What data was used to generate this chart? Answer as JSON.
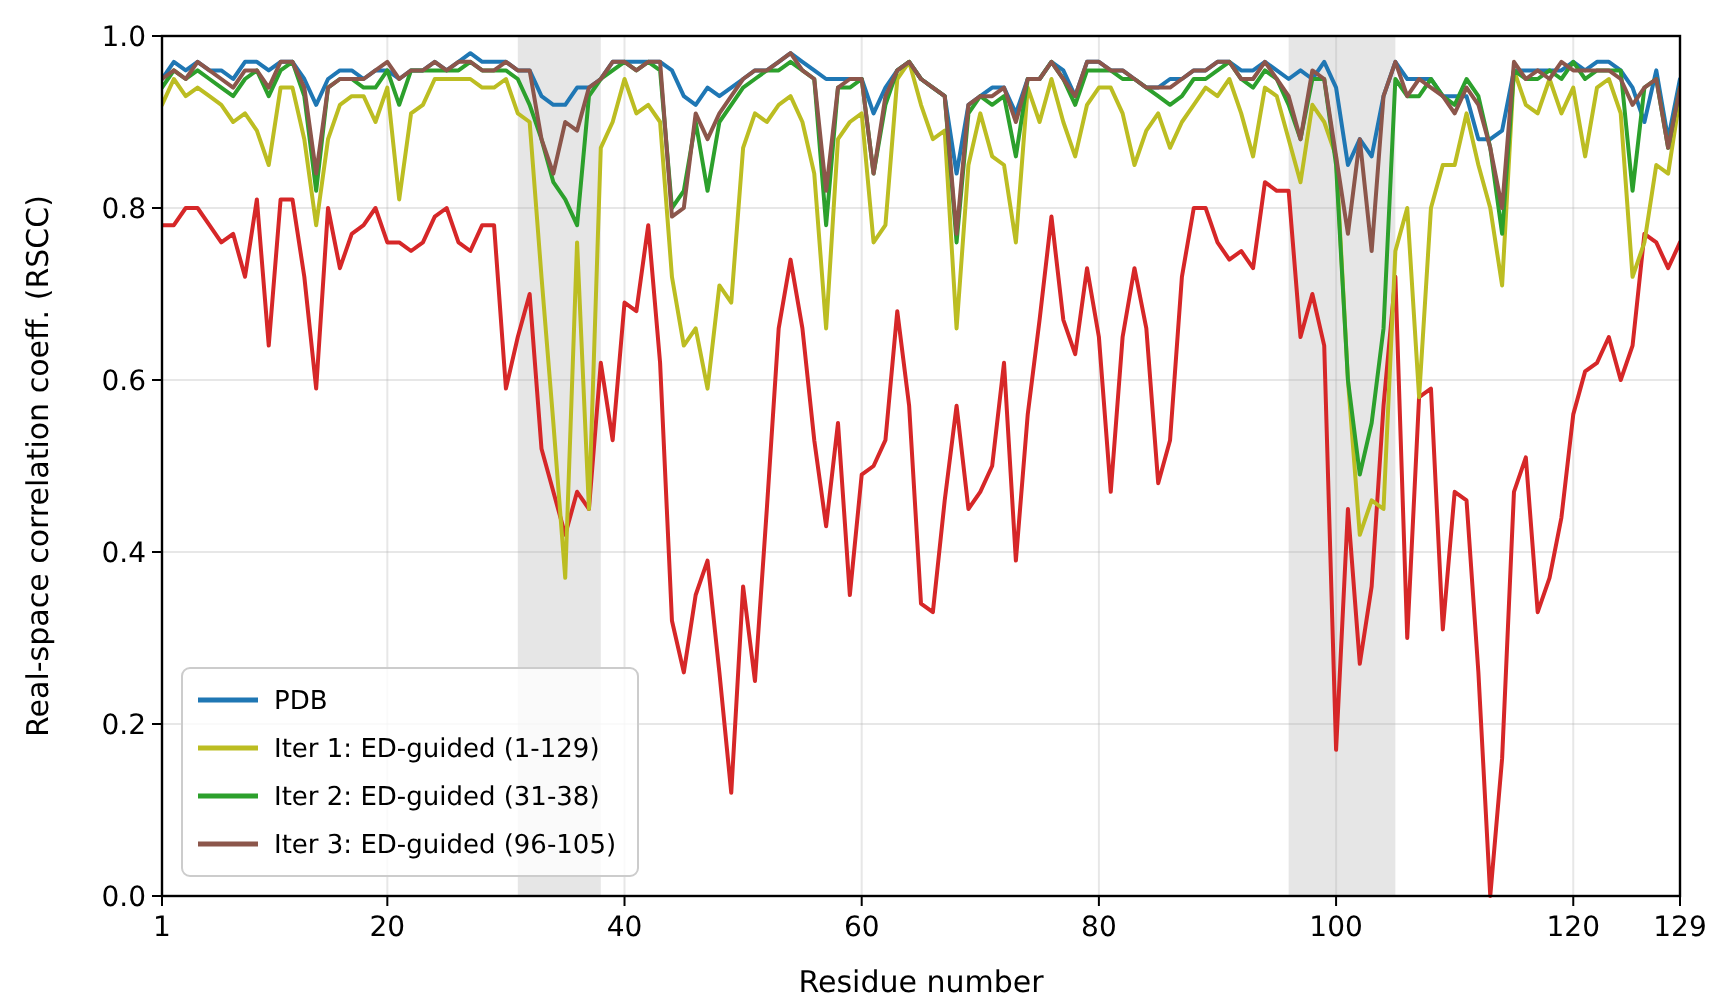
{
  "chart_data": {
    "type": "line",
    "xlabel": "Residue number",
    "ylabel": "Real-space correlation coeff. (RSCC)",
    "x": [
      1,
      2,
      3,
      4,
      5,
      6,
      7,
      8,
      9,
      10,
      11,
      12,
      13,
      14,
      15,
      16,
      17,
      18,
      19,
      20,
      21,
      22,
      23,
      24,
      25,
      26,
      27,
      28,
      29,
      30,
      31,
      32,
      33,
      34,
      35,
      36,
      37,
      38,
      39,
      40,
      41,
      42,
      43,
      44,
      45,
      46,
      47,
      48,
      49,
      50,
      51,
      52,
      53,
      54,
      55,
      56,
      57,
      58,
      59,
      60,
      61,
      62,
      63,
      64,
      65,
      66,
      67,
      68,
      69,
      70,
      71,
      72,
      73,
      74,
      75,
      76,
      77,
      78,
      79,
      80,
      81,
      82,
      83,
      84,
      85,
      86,
      87,
      88,
      89,
      90,
      91,
      92,
      93,
      94,
      95,
      96,
      97,
      98,
      99,
      100,
      101,
      102,
      103,
      104,
      105,
      106,
      107,
      108,
      109,
      110,
      111,
      112,
      113,
      114,
      115,
      116,
      117,
      118,
      119,
      120,
      121,
      122,
      123,
      124,
      125,
      126,
      127,
      128,
      129
    ],
    "xlim": [
      1,
      129
    ],
    "xticks": [
      1,
      20,
      40,
      60,
      80,
      100,
      120,
      129
    ],
    "ylim": [
      0,
      1
    ],
    "yticks": [
      {
        "value": 0,
        "label": "0.0"
      },
      {
        "value": 0.2,
        "label": "0.2"
      },
      {
        "value": 0.4,
        "label": "0.4"
      },
      {
        "value": 0.6,
        "label": "0.6"
      },
      {
        "value": 0.8,
        "label": "0.8"
      },
      {
        "value": 1,
        "label": "1.0"
      }
    ],
    "grid": true,
    "legend": "bottom left",
    "line_style": "solid",
    "bands": [
      {
        "axis": "x",
        "from": 31,
        "to": 38,
        "color": "#e6e6e6"
      },
      {
        "axis": "x",
        "from": 96,
        "to": 105,
        "color": "#e6e6e6"
      }
    ],
    "series": [
      {
        "name": "PDB",
        "color": "#1f77b4",
        "values": [
          0.95,
          0.97,
          0.96,
          0.97,
          0.96,
          0.96,
          0.95,
          0.97,
          0.97,
          0.96,
          0.97,
          0.97,
          0.95,
          0.92,
          0.95,
          0.96,
          0.96,
          0.95,
          0.96,
          0.96,
          0.95,
          0.96,
          0.96,
          0.97,
          0.96,
          0.97,
          0.98,
          0.97,
          0.97,
          0.97,
          0.96,
          0.96,
          0.93,
          0.92,
          0.92,
          0.94,
          0.94,
          0.95,
          0.97,
          0.97,
          0.97,
          0.97,
          0.97,
          0.96,
          0.93,
          0.92,
          0.94,
          0.93,
          0.94,
          0.95,
          0.96,
          0.96,
          0.97,
          0.98,
          0.97,
          0.96,
          0.95,
          0.95,
          0.95,
          0.95,
          0.91,
          0.94,
          0.96,
          0.97,
          0.95,
          0.94,
          0.93,
          0.84,
          0.92,
          0.93,
          0.94,
          0.94,
          0.91,
          0.95,
          0.95,
          0.97,
          0.96,
          0.93,
          0.97,
          0.97,
          0.96,
          0.96,
          0.95,
          0.94,
          0.94,
          0.95,
          0.95,
          0.96,
          0.96,
          0.97,
          0.97,
          0.96,
          0.96,
          0.97,
          0.96,
          0.95,
          0.96,
          0.95,
          0.97,
          0.94,
          0.85,
          0.88,
          0.86,
          0.93,
          0.97,
          0.95,
          0.95,
          0.95,
          0.93,
          0.93,
          0.93,
          0.88,
          0.88,
          0.89,
          0.96,
          0.96,
          0.96,
          0.96,
          0.96,
          0.97,
          0.96,
          0.97,
          0.97,
          0.96,
          0.94,
          0.9,
          0.96,
          0.88,
          0.95
        ]
      },
      {
        "color": "#d62728",
        "values": [
          0.78,
          0.78,
          0.8,
          0.8,
          0.78,
          0.76,
          0.77,
          0.72,
          0.81,
          0.64,
          0.81,
          0.81,
          0.72,
          0.59,
          0.8,
          0.73,
          0.77,
          0.78,
          0.8,
          0.76,
          0.76,
          0.75,
          0.76,
          0.79,
          0.8,
          0.76,
          0.75,
          0.78,
          0.78,
          0.59,
          0.65,
          0.7,
          0.52,
          0.47,
          0.42,
          0.47,
          0.45,
          0.62,
          0.53,
          0.69,
          0.68,
          0.78,
          0.62,
          0.32,
          0.26,
          0.35,
          0.39,
          0.26,
          0.12,
          0.36,
          0.25,
          0.45,
          0.66,
          0.74,
          0.66,
          0.53,
          0.43,
          0.55,
          0.35,
          0.49,
          0.5,
          0.53,
          0.68,
          0.57,
          0.34,
          0.33,
          0.46,
          0.57,
          0.45,
          0.47,
          0.5,
          0.62,
          0.39,
          0.56,
          0.67,
          0.79,
          0.67,
          0.63,
          0.73,
          0.65,
          0.47,
          0.65,
          0.73,
          0.66,
          0.48,
          0.53,
          0.72,
          0.8,
          0.8,
          0.76,
          0.74,
          0.75,
          0.73,
          0.83,
          0.82,
          0.82,
          0.65,
          0.7,
          0.64,
          0.17,
          0.45,
          0.27,
          0.36,
          0.57,
          0.72,
          0.3,
          0.58,
          0.59,
          0.31,
          0.47,
          0.46,
          0.26,
          0.0,
          0.16,
          0.47,
          0.51,
          0.33,
          0.37,
          0.44,
          0.56,
          0.61,
          0.62,
          0.65,
          0.6,
          0.64,
          0.77,
          0.76,
          0.73,
          0.76
        ]
      },
      {
        "name": "Iter 1: ED-guided (1-129)",
        "color": "#bcbd22",
        "values": [
          0.92,
          0.95,
          0.93,
          0.94,
          0.93,
          0.92,
          0.9,
          0.91,
          0.89,
          0.85,
          0.94,
          0.94,
          0.88,
          0.78,
          0.88,
          0.92,
          0.93,
          0.93,
          0.9,
          0.94,
          0.81,
          0.91,
          0.92,
          0.95,
          0.95,
          0.95,
          0.95,
          0.94,
          0.94,
          0.95,
          0.91,
          0.9,
          0.72,
          0.55,
          0.37,
          0.76,
          0.45,
          0.87,
          0.9,
          0.95,
          0.91,
          0.92,
          0.9,
          0.72,
          0.64,
          0.66,
          0.59,
          0.71,
          0.69,
          0.87,
          0.91,
          0.9,
          0.92,
          0.93,
          0.9,
          0.84,
          0.66,
          0.88,
          0.9,
          0.91,
          0.76,
          0.78,
          0.95,
          0.97,
          0.92,
          0.88,
          0.89,
          0.66,
          0.85,
          0.91,
          0.86,
          0.85,
          0.76,
          0.94,
          0.9,
          0.95,
          0.9,
          0.86,
          0.92,
          0.94,
          0.94,
          0.91,
          0.85,
          0.89,
          0.91,
          0.87,
          0.9,
          0.92,
          0.94,
          0.93,
          0.95,
          0.91,
          0.86,
          0.94,
          0.93,
          0.88,
          0.83,
          0.92,
          0.9,
          0.86,
          0.6,
          0.42,
          0.46,
          0.45,
          0.75,
          0.8,
          0.58,
          0.8,
          0.85,
          0.85,
          0.91,
          0.85,
          0.8,
          0.71,
          0.96,
          0.92,
          0.91,
          0.95,
          0.91,
          0.94,
          0.86,
          0.94,
          0.95,
          0.91,
          0.72,
          0.76,
          0.85,
          0.84,
          0.93
        ]
      },
      {
        "name": "Iter 2: ED-guided (31-38)",
        "color": "#2ca02c",
        "values": [
          0.94,
          0.96,
          0.95,
          0.96,
          0.95,
          0.94,
          0.93,
          0.95,
          0.96,
          0.93,
          0.96,
          0.97,
          0.93,
          0.82,
          0.94,
          0.95,
          0.95,
          0.94,
          0.94,
          0.96,
          0.92,
          0.96,
          0.96,
          0.96,
          0.96,
          0.96,
          0.97,
          0.96,
          0.96,
          0.96,
          0.95,
          0.92,
          0.88,
          0.83,
          0.81,
          0.78,
          0.93,
          0.95,
          0.96,
          0.97,
          0.96,
          0.97,
          0.96,
          0.8,
          0.82,
          0.9,
          0.82,
          0.9,
          0.92,
          0.94,
          0.95,
          0.96,
          0.96,
          0.97,
          0.96,
          0.95,
          0.78,
          0.94,
          0.94,
          0.95,
          0.84,
          0.92,
          0.96,
          0.97,
          0.95,
          0.94,
          0.93,
          0.76,
          0.91,
          0.93,
          0.92,
          0.93,
          0.86,
          0.95,
          0.95,
          0.97,
          0.95,
          0.92,
          0.96,
          0.96,
          0.96,
          0.95,
          0.95,
          0.94,
          0.93,
          0.92,
          0.93,
          0.95,
          0.95,
          0.96,
          0.97,
          0.95,
          0.94,
          0.96,
          0.95,
          0.92,
          0.88,
          0.95,
          0.95,
          0.85,
          0.6,
          0.49,
          0.55,
          0.66,
          0.95,
          0.93,
          0.93,
          0.95,
          0.93,
          0.92,
          0.95,
          0.93,
          0.87,
          0.77,
          0.96,
          0.95,
          0.95,
          0.96,
          0.95,
          0.97,
          0.95,
          0.96,
          0.96,
          0.96,
          0.82,
          0.94,
          0.95,
          0.87,
          0.94
        ]
      },
      {
        "name": "Iter 3: ED-guided (96-105)",
        "color": "#8c564b",
        "values": [
          0.95,
          0.96,
          0.95,
          0.97,
          0.96,
          0.95,
          0.94,
          0.96,
          0.96,
          0.94,
          0.97,
          0.97,
          0.94,
          0.84,
          0.94,
          0.95,
          0.95,
          0.95,
          0.96,
          0.97,
          0.95,
          0.96,
          0.96,
          0.97,
          0.96,
          0.97,
          0.97,
          0.96,
          0.96,
          0.97,
          0.96,
          0.96,
          0.88,
          0.84,
          0.9,
          0.89,
          0.94,
          0.95,
          0.97,
          0.97,
          0.96,
          0.97,
          0.97,
          0.79,
          0.8,
          0.91,
          0.88,
          0.91,
          0.93,
          0.95,
          0.96,
          0.96,
          0.97,
          0.98,
          0.96,
          0.95,
          0.82,
          0.94,
          0.95,
          0.95,
          0.84,
          0.93,
          0.96,
          0.97,
          0.95,
          0.94,
          0.93,
          0.77,
          0.92,
          0.93,
          0.93,
          0.94,
          0.9,
          0.95,
          0.95,
          0.97,
          0.95,
          0.93,
          0.97,
          0.97,
          0.96,
          0.96,
          0.95,
          0.94,
          0.94,
          0.94,
          0.95,
          0.96,
          0.96,
          0.97,
          0.97,
          0.95,
          0.95,
          0.97,
          0.95,
          0.93,
          0.88,
          0.96,
          0.95,
          0.86,
          0.77,
          0.88,
          0.75,
          0.93,
          0.97,
          0.93,
          0.95,
          0.94,
          0.93,
          0.91,
          0.94,
          0.92,
          0.87,
          0.8,
          0.97,
          0.95,
          0.96,
          0.95,
          0.97,
          0.96,
          0.96,
          0.96,
          0.96,
          0.95,
          0.92,
          0.94,
          0.95,
          0.87,
          0.94
        ]
      }
    ]
  }
}
